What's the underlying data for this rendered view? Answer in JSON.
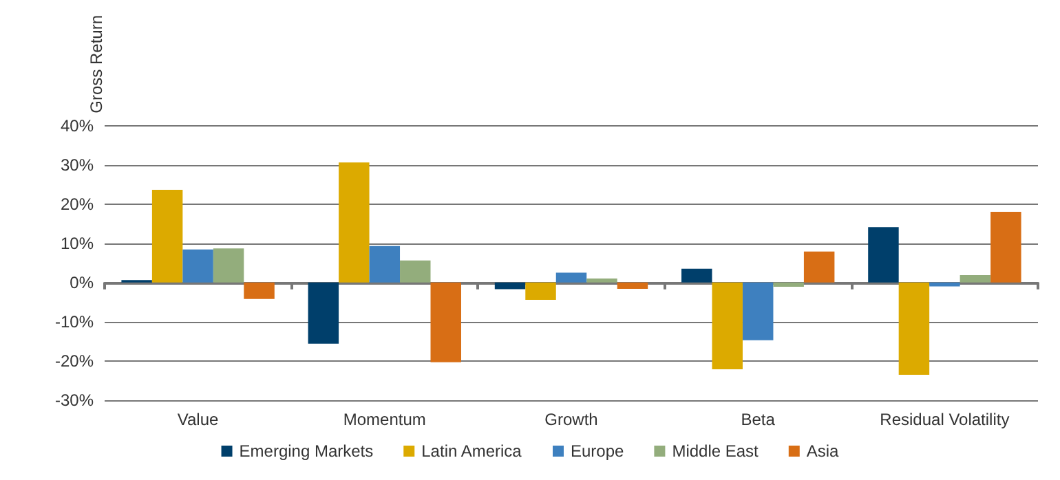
{
  "chart_data": {
    "type": "bar",
    "ylabel": "Gross Return",
    "categories": [
      "Value",
      "Momentum",
      "Growth",
      "Beta",
      "Residual Volatility"
    ],
    "series": [
      {
        "name": "Emerging Markets",
        "color": "#003f6b",
        "values": [
          0.6,
          -15.6,
          -1.7,
          3.5,
          14.1
        ]
      },
      {
        "name": "Latin America",
        "color": "#dcaa00",
        "values": [
          23.6,
          30.6,
          -4.4,
          -22.1,
          -23.5
        ]
      },
      {
        "name": "Europe",
        "color": "#3e80bf",
        "values": [
          8.4,
          9.3,
          2.5,
          -14.7,
          -1.0
        ]
      },
      {
        "name": "Middle East",
        "color": "#93ad7c",
        "values": [
          8.7,
          5.6,
          1.0,
          -1.1,
          1.9
        ]
      },
      {
        "name": "Asia",
        "color": "#d86e15",
        "values": [
          -4.2,
          -20.3,
          -1.6,
          7.9,
          18.0
        ]
      }
    ],
    "ylim": [
      -30,
      40
    ],
    "yticks": [
      {
        "value": -30,
        "label": "-30%"
      },
      {
        "value": -20,
        "label": "-20%"
      },
      {
        "value": -10,
        "label": "-10%"
      },
      {
        "value": 0,
        "label": "0%"
      },
      {
        "value": 10,
        "label": "10%"
      },
      {
        "value": 20,
        "label": "20%"
      },
      {
        "value": 30,
        "label": "30%"
      },
      {
        "value": 40,
        "label": "40%"
      }
    ],
    "grid": "y",
    "legend": "bottom"
  }
}
